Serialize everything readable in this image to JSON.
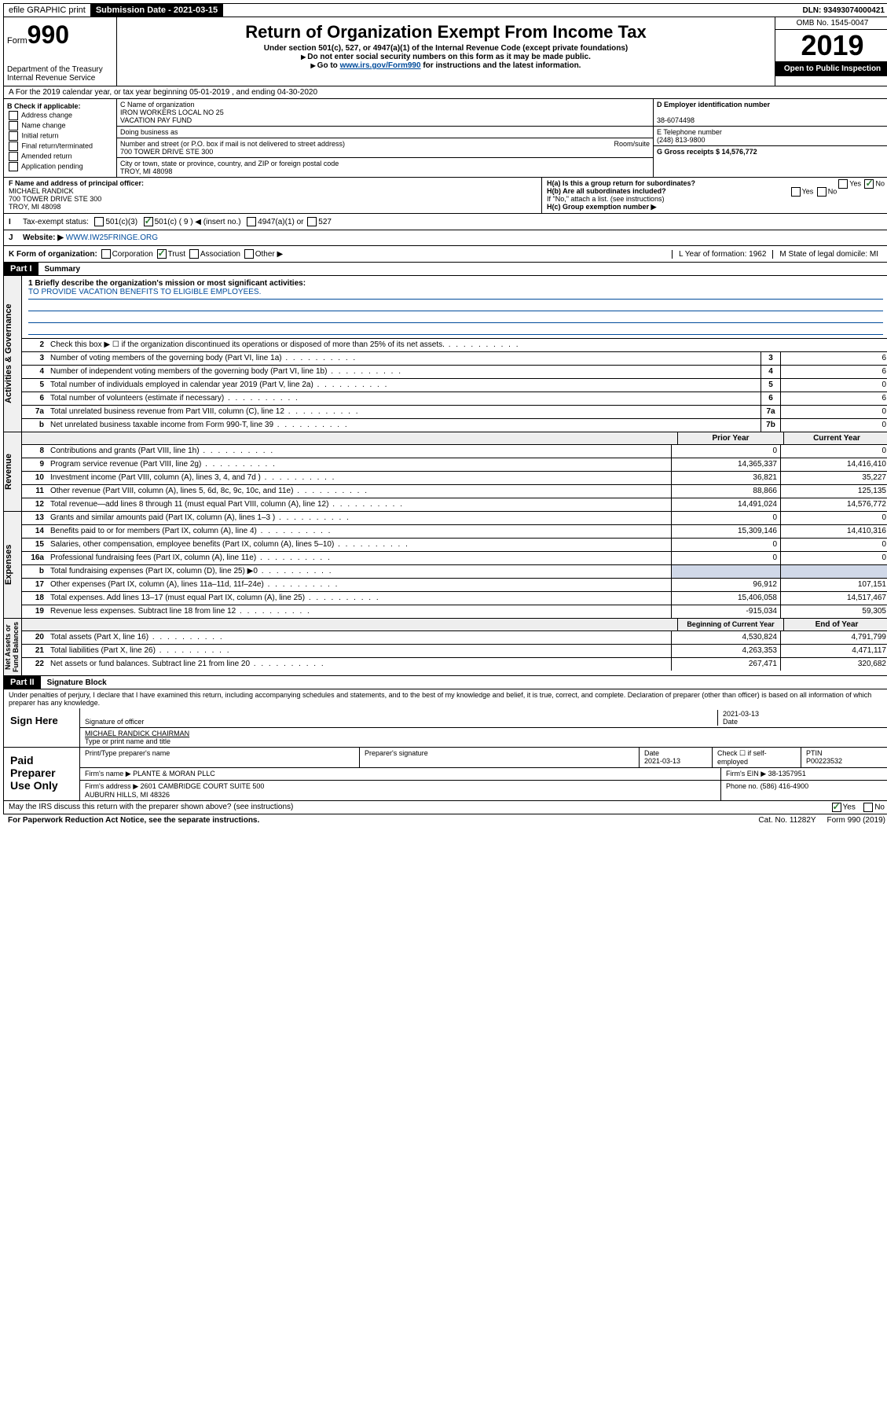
{
  "topbar": {
    "efile": "efile GRAPHIC print",
    "submission_label": "Submission Date - 2021-03-15",
    "dln": "DLN: 93493074000421"
  },
  "header": {
    "form_prefix": "Form",
    "form_number": "990",
    "dept": "Department of the Treasury\nInternal Revenue Service",
    "title": "Return of Organization Exempt From Income Tax",
    "subtitle": "Under section 501(c), 527, or 4947(a)(1) of the Internal Revenue Code (except private foundations)",
    "note1": "Do not enter social security numbers on this form as it may be made public.",
    "note2_pre": "Go to ",
    "note2_link": "www.irs.gov/Form990",
    "note2_post": " for instructions and the latest information.",
    "omb": "OMB No. 1545-0047",
    "year": "2019",
    "inspection": "Open to Public Inspection"
  },
  "row_a": "A For the 2019 calendar year, or tax year beginning 05-01-2019   , and ending 04-30-2020",
  "section_b": {
    "label": "B Check if applicable:",
    "opts": [
      "Address change",
      "Name change",
      "Initial return",
      "Final return/terminated",
      "Amended return",
      "Application pending"
    ]
  },
  "section_c": {
    "name_label": "C Name of organization",
    "name": "IRON WORKERS LOCAL NO 25\nVACATION PAY FUND",
    "dba_label": "Doing business as",
    "addr_label": "Number and street (or P.O. box if mail is not delivered to street address)",
    "room_label": "Room/suite",
    "addr": "700 TOWER DRIVE STE 300",
    "city_label": "City or town, state or province, country, and ZIP or foreign postal code",
    "city": "TROY, MI  48098"
  },
  "section_d": {
    "ein_label": "D Employer identification number",
    "ein": "38-6074498",
    "phone_label": "E Telephone number",
    "phone": "(248) 813-9800",
    "gross_label": "G Gross receipts $ 14,576,772"
  },
  "section_f": {
    "label": "F  Name and address of principal officer:",
    "name": "MICHAEL RANDICK",
    "addr1": "700 TOWER DRIVE STE 300",
    "addr2": "TROY, MI  48098"
  },
  "section_h": {
    "ha": "H(a)  Is this a group return for subordinates?",
    "hb": "H(b)  Are all subordinates included?",
    "hb_note": "If \"No,\" attach a list. (see instructions)",
    "hc": "H(c)  Group exemption number ▶",
    "yes": "Yes",
    "no": "No"
  },
  "status": {
    "label": "Tax-exempt status:",
    "opts": [
      "501(c)(3)",
      "501(c) ( 9 ) ◀ (insert no.)",
      "4947(a)(1) or",
      "527"
    ]
  },
  "website": {
    "label": "Website: ▶",
    "url": "WWW.IW25FRINGE.ORG"
  },
  "kform": {
    "label": "K Form of organization:",
    "opts": [
      "Corporation",
      "Trust",
      "Association",
      "Other ▶"
    ],
    "year_label": "L Year of formation: 1962",
    "state_label": "M State of legal domicile: MI"
  },
  "part1": {
    "tag": "Part I",
    "title": "Summary"
  },
  "mission": {
    "q": "1  Briefly describe the organization's mission or most significant activities:",
    "text": "TO PROVIDE VACATION BENEFITS TO ELIGIBLE EMPLOYEES."
  },
  "governance_lines": [
    {
      "n": "2",
      "d": "Check this box ▶ ☐  if the organization discontinued its operations or disposed of more than 25% of its net assets."
    },
    {
      "n": "3",
      "d": "Number of voting members of the governing body (Part VI, line 1a)",
      "box": "3",
      "v": "6"
    },
    {
      "n": "4",
      "d": "Number of independent voting members of the governing body (Part VI, line 1b)",
      "box": "4",
      "v": "6"
    },
    {
      "n": "5",
      "d": "Total number of individuals employed in calendar year 2019 (Part V, line 2a)",
      "box": "5",
      "v": "0"
    },
    {
      "n": "6",
      "d": "Total number of volunteers (estimate if necessary)",
      "box": "6",
      "v": "6"
    },
    {
      "n": "7a",
      "d": "Total unrelated business revenue from Part VIII, column (C), line 12",
      "box": "7a",
      "v": "0"
    },
    {
      "n": "b",
      "d": "Net unrelated business taxable income from Form 990-T, line 39",
      "box": "7b",
      "v": "0"
    }
  ],
  "rev_header": {
    "prior": "Prior Year",
    "current": "Current Year"
  },
  "revenue_lines": [
    {
      "n": "8",
      "d": "Contributions and grants (Part VIII, line 1h)",
      "p": "0",
      "c": "0"
    },
    {
      "n": "9",
      "d": "Program service revenue (Part VIII, line 2g)",
      "p": "14,365,337",
      "c": "14,416,410"
    },
    {
      "n": "10",
      "d": "Investment income (Part VIII, column (A), lines 3, 4, and 7d )",
      "p": "36,821",
      "c": "35,227"
    },
    {
      "n": "11",
      "d": "Other revenue (Part VIII, column (A), lines 5, 6d, 8c, 9c, 10c, and 11e)",
      "p": "88,866",
      "c": "125,135"
    },
    {
      "n": "12",
      "d": "Total revenue—add lines 8 through 11 (must equal Part VIII, column (A), line 12)",
      "p": "14,491,024",
      "c": "14,576,772"
    }
  ],
  "expense_lines": [
    {
      "n": "13",
      "d": "Grants and similar amounts paid (Part IX, column (A), lines 1–3 )",
      "p": "0",
      "c": "0"
    },
    {
      "n": "14",
      "d": "Benefits paid to or for members (Part IX, column (A), line 4)",
      "p": "15,309,146",
      "c": "14,410,316"
    },
    {
      "n": "15",
      "d": "Salaries, other compensation, employee benefits (Part IX, column (A), lines 5–10)",
      "p": "0",
      "c": "0"
    },
    {
      "n": "16a",
      "d": "Professional fundraising fees (Part IX, column (A), line 11e)",
      "p": "0",
      "c": "0"
    },
    {
      "n": "b",
      "d": "Total fundraising expenses (Part IX, column (D), line 25) ▶0",
      "shade": true
    },
    {
      "n": "17",
      "d": "Other expenses (Part IX, column (A), lines 11a–11d, 11f–24e)",
      "p": "96,912",
      "c": "107,151"
    },
    {
      "n": "18",
      "d": "Total expenses. Add lines 13–17 (must equal Part IX, column (A), line 25)",
      "p": "15,406,058",
      "c": "14,517,467"
    },
    {
      "n": "19",
      "d": "Revenue less expenses. Subtract line 18 from line 12",
      "p": "-915,034",
      "c": "59,305"
    }
  ],
  "na_header": {
    "prior": "Beginning of Current Year",
    "current": "End of Year"
  },
  "netassets_lines": [
    {
      "n": "20",
      "d": "Total assets (Part X, line 16)",
      "p": "4,530,824",
      "c": "4,791,799"
    },
    {
      "n": "21",
      "d": "Total liabilities (Part X, line 26)",
      "p": "4,263,353",
      "c": "4,471,117"
    },
    {
      "n": "22",
      "d": "Net assets or fund balances. Subtract line 21 from line 20",
      "p": "267,471",
      "c": "320,682"
    }
  ],
  "vtabs": {
    "gov": "Activities & Governance",
    "rev": "Revenue",
    "exp": "Expenses",
    "na": "Net Assets or\nFund Balances"
  },
  "part2": {
    "tag": "Part II",
    "title": "Signature Block"
  },
  "sig": {
    "penalty": "Under penalties of perjury, I declare that I have examined this return, including accompanying schedules and statements, and to the best of my knowledge and belief, it is true, correct, and complete. Declaration of preparer (other than officer) is based on all information of which preparer has any knowledge.",
    "sign_here": "Sign Here",
    "sig_label": "Signature of officer",
    "date": "2021-03-13",
    "date_label": "Date",
    "name": "MICHAEL RANDICK  CHAIRMAN",
    "name_label": "Type or print name and title"
  },
  "paid": {
    "label": "Paid Preparer Use Only",
    "h1": "Print/Type preparer's name",
    "h2": "Preparer's signature",
    "h3": "Date",
    "h4": "Check ☐ if self-employed",
    "h5": "PTIN",
    "date": "2021-03-13",
    "ptin": "P00223532",
    "firm_label": "Firm's name   ▶",
    "firm": "PLANTE & MORAN PLLC",
    "ein_label": "Firm's EIN ▶",
    "ein": "38-1357951",
    "addr_label": "Firm's address ▶",
    "addr": "2601 CAMBRIDGE COURT SUITE 500\nAUBURN HILLS, MI  48326",
    "phone_label": "Phone no.",
    "phone": "(586) 416-4900"
  },
  "discuss": {
    "q": "May the IRS discuss this return with the preparer shown above? (see instructions)",
    "yes": "Yes",
    "no": "No"
  },
  "footer": {
    "left": "For Paperwork Reduction Act Notice, see the separate instructions.",
    "mid": "Cat. No. 11282Y",
    "right": "Form 990 (2019)"
  }
}
